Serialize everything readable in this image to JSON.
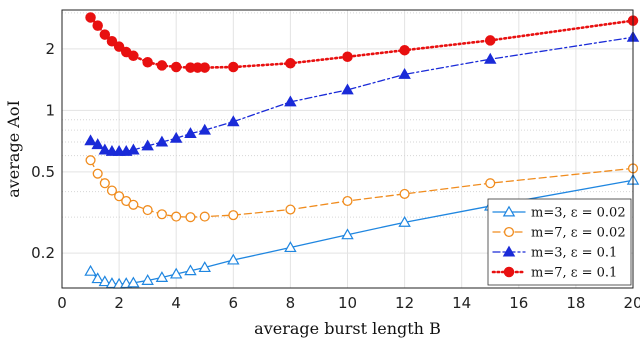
{
  "chart_data": {
    "type": "line",
    "xlabel": "average burst length B",
    "ylabel": "average AoI",
    "xlim": [
      0,
      20
    ],
    "ylim": [
      0.135,
      3.1
    ],
    "yscale": "log",
    "grid": true,
    "legend_position": "bottom-right",
    "x_ticks": [
      "0",
      "2",
      "4",
      "6",
      "8",
      "10",
      "12",
      "14",
      "16",
      "18",
      "20"
    ],
    "y_ticks": [
      "0.2",
      "0.5",
      "1",
      "2"
    ],
    "series": [
      {
        "name": "m=3, ε = 0.02",
        "color": "#1f86e0",
        "line": "solid",
        "marker": "triangle-open",
        "x": [
          1,
          1.25,
          1.5,
          1.75,
          2,
          2.25,
          2.5,
          3,
          3.5,
          4,
          4.5,
          5,
          6,
          8,
          10,
          12,
          15,
          20
        ],
        "y": [
          0.163,
          0.15,
          0.145,
          0.142,
          0.141,
          0.142,
          0.143,
          0.147,
          0.152,
          0.158,
          0.164,
          0.17,
          0.185,
          0.213,
          0.246,
          0.283,
          0.34,
          0.455
        ]
      },
      {
        "name": "m=7, ε = 0.02",
        "color": "#f08c1e",
        "line": "dashed",
        "marker": "circle-open",
        "x": [
          1,
          1.25,
          1.5,
          1.75,
          2,
          2.25,
          2.5,
          3,
          3.5,
          4,
          4.5,
          5,
          6,
          8,
          10,
          12,
          15,
          20
        ],
        "y": [
          0.57,
          0.49,
          0.44,
          0.405,
          0.38,
          0.36,
          0.345,
          0.325,
          0.31,
          0.302,
          0.3,
          0.302,
          0.307,
          0.327,
          0.36,
          0.39,
          0.44,
          0.52
        ]
      },
      {
        "name": "m=3, ε = 0.1",
        "color": "#1a2bd8",
        "line": "dashdot",
        "marker": "triangle-filled",
        "x": [
          1,
          1.25,
          1.5,
          1.75,
          2,
          2.25,
          2.5,
          3,
          3.5,
          4,
          4.5,
          5,
          6,
          8,
          10,
          12,
          15,
          20
        ],
        "y": [
          0.71,
          0.68,
          0.64,
          0.63,
          0.63,
          0.63,
          0.64,
          0.67,
          0.7,
          0.73,
          0.77,
          0.8,
          0.88,
          1.1,
          1.26,
          1.5,
          1.78,
          2.28
        ]
      },
      {
        "name": "m=7, ε = 0.1",
        "color": "#e81010",
        "line": "dotted",
        "marker": "circle-filled",
        "x": [
          1,
          1.25,
          1.5,
          1.75,
          2,
          2.25,
          2.5,
          3,
          3.5,
          4,
          4.5,
          4.75,
          5,
          6,
          8,
          10,
          12,
          15,
          20
        ],
        "y": [
          2.85,
          2.6,
          2.35,
          2.18,
          2.05,
          1.93,
          1.85,
          1.72,
          1.66,
          1.63,
          1.62,
          1.62,
          1.62,
          1.63,
          1.7,
          1.83,
          1.97,
          2.2,
          2.75
        ]
      }
    ]
  }
}
